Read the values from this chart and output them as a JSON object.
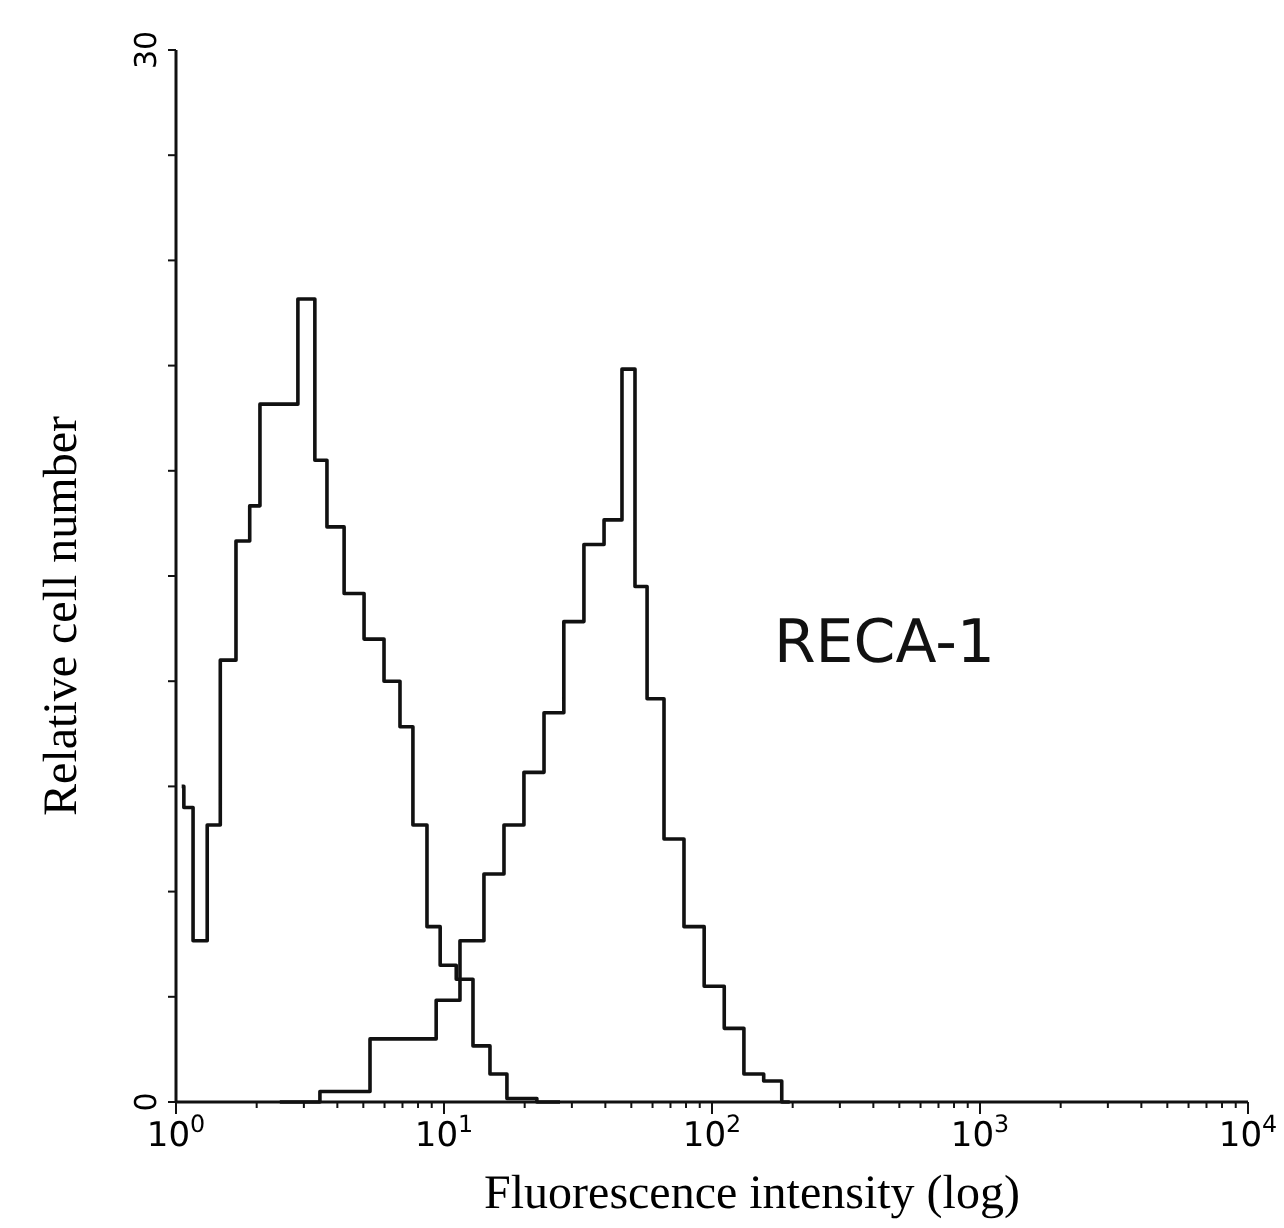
{
  "chart_data": {
    "type": "step",
    "xlabel": "Fluorescence intensity (log)",
    "ylabel": "Relative cell number",
    "log": "x",
    "xlim": [
      1,
      10000
    ],
    "ylim": [
      0,
      30
    ],
    "xticks": [
      {
        "value": 1,
        "label": "10$^{0}$"
      },
      {
        "value": 2,
        "label": null
      },
      {
        "value": 3,
        "label": null
      },
      {
        "value": 4,
        "label": null
      },
      {
        "value": 5,
        "label": null
      },
      {
        "value": 6,
        "label": null
      },
      {
        "value": 7,
        "label": null
      },
      {
        "value": 8,
        "label": null
      },
      {
        "value": 9,
        "label": null
      },
      {
        "value": 10,
        "label": "10$^{1}$"
      },
      {
        "value": 20,
        "label": null
      },
      {
        "value": 30,
        "label": null
      },
      {
        "value": 40,
        "label": null
      },
      {
        "value": 50,
        "label": null
      },
      {
        "value": 60,
        "label": null
      },
      {
        "value": 70,
        "label": null
      },
      {
        "value": 80,
        "label": null
      },
      {
        "value": 90,
        "label": null
      },
      {
        "value": 100,
        "label": "10$^{2}$"
      },
      {
        "value": 200,
        "label": null
      },
      {
        "value": 300,
        "label": null
      },
      {
        "value": 400,
        "label": null
      },
      {
        "value": 500,
        "label": null
      },
      {
        "value": 600,
        "label": null
      },
      {
        "value": 700,
        "label": null
      },
      {
        "value": 800,
        "label": null
      },
      {
        "value": 900,
        "label": null
      },
      {
        "value": 1000,
        "label": "10$^{3}$"
      },
      {
        "value": 2000,
        "label": null
      },
      {
        "value": 3000,
        "label": null
      },
      {
        "value": 4000,
        "label": null
      },
      {
        "value": 5000,
        "label": null
      },
      {
        "value": 6000,
        "label": null
      },
      {
        "value": 7000,
        "label": null
      },
      {
        "value": 8000,
        "label": null
      },
      {
        "value": 9000,
        "label": null
      },
      {
        "value": 10000,
        "label": "10$^{4}$"
      }
    ],
    "yticks": [
      0,
      {
        "value": 3,
        "label": null
      },
      {
        "value": 6,
        "label": null
      },
      {
        "value": 9,
        "label": null
      },
      {
        "value": 12,
        "label": null
      },
      {
        "value": 15,
        "label": null
      },
      {
        "value": 18,
        "label": null
      },
      {
        "value": 21,
        "label": null
      },
      {
        "value": 24,
        "label": null
      },
      {
        "value": 27,
        "label": null
      },
      30
    ],
    "series": [
      {
        "color": "#111111",
        "x": [
          1.05,
          1.09,
          1.23,
          1.39,
          1.54,
          1.82,
          1.95,
          2.17,
          2.57,
          3.16,
          3.44,
          3.89,
          4.62,
          5.48,
          6.51,
          7.21,
          8.13,
          9.18,
          10.2,
          12.1,
          13.6,
          16.2,
          18.2,
          27.1
        ],
        "values": [
          9,
          8.4,
          4.6,
          7.9,
          12.6,
          16,
          17,
          19.9,
          19.9,
          22.9,
          18.3,
          16.4,
          14.5,
          13.2,
          12,
          10.7,
          7.9,
          5,
          3.9,
          3.5,
          1.6,
          0.8,
          0.1,
          0
        ]
      },
      {
        "name": "RECA-1",
        "color": "#111111",
        "x": [
          2.44,
          4.86,
          5.77,
          8.57,
          10.2,
          12.9,
          15.4,
          18.2,
          21.7,
          25.7,
          30.5,
          36.3,
          43.1,
          49.4,
          53.9,
          60.8,
          72.1,
          85.7,
          102,
          121,
          143,
          170,
          195
        ],
        "values": [
          0,
          0.3,
          1.8,
          1.8,
          2.9,
          4.6,
          6.5,
          7.9,
          9.4,
          11.1,
          13.7,
          15.9,
          16.6,
          20.9,
          14.7,
          11.5,
          7.5,
          5,
          3.3,
          2.1,
          0.8,
          0.6,
          0
        ]
      }
    ]
  }
}
